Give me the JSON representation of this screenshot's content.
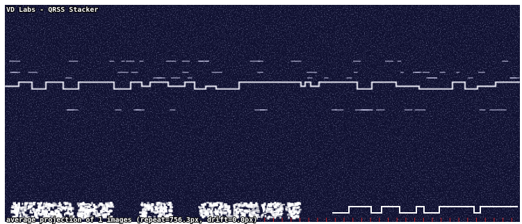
{
  "header": {
    "title": "VD Labs - QRSS Stacker"
  },
  "footer": {
    "caption": "average projection of 1 images (repeat=756.3px, drift=0.0px)"
  }
}
